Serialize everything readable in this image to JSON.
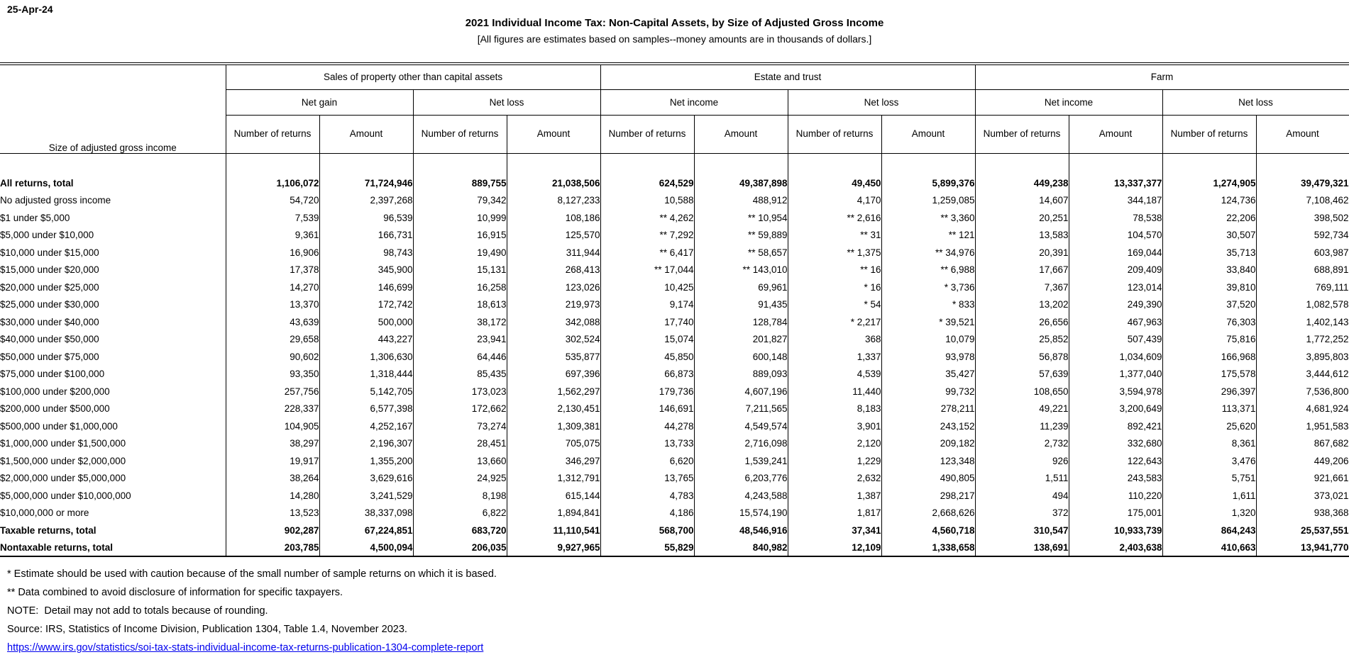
{
  "page": {
    "date": "25-Apr-24",
    "title": "2021 Individual Income Tax: Non-Capital Assets, by Size of Adjusted Gross Income",
    "subtitle": "[All figures are estimates based on samples--money amounts are in thousands of dollars.]",
    "link_color": "#0000EE"
  },
  "table": {
    "stub_header": "Size of adjusted gross income",
    "groups": [
      {
        "label": "Sales of property other than capital assets",
        "subgroups": [
          "Net gain",
          "Net loss"
        ]
      },
      {
        "label": "Estate and trust",
        "subgroups": [
          "Net income",
          "Net loss"
        ]
      },
      {
        "label": "Farm",
        "subgroups": [
          "Net income",
          "Net loss"
        ]
      }
    ],
    "measure_headers": [
      "Number of returns",
      "Amount"
    ],
    "rows": [
      {
        "label": "All returns, total",
        "bold": true,
        "values": [
          "1,106,072",
          "71,724,946",
          "889,755",
          "21,038,506",
          "624,529",
          "49,387,898",
          "49,450",
          "5,899,376",
          "449,238",
          "13,337,377",
          "1,274,905",
          "39,479,321"
        ]
      },
      {
        "label": "No adjusted gross income",
        "bold": false,
        "values": [
          "54,720",
          "2,397,268",
          "79,342",
          "8,127,233",
          "10,588",
          "488,912",
          "4,170",
          "1,259,085",
          "14,607",
          "344,187",
          "124,736",
          "7,108,462"
        ]
      },
      {
        "label": "$1 under $5,000",
        "bold": false,
        "values": [
          "7,539",
          "96,539",
          "10,999",
          "108,186",
          "** 4,262",
          "** 10,954",
          "** 2,616",
          "** 3,360",
          "20,251",
          "78,538",
          "22,206",
          "398,502"
        ]
      },
      {
        "label": "$5,000 under $10,000",
        "bold": false,
        "values": [
          "9,361",
          "166,731",
          "16,915",
          "125,570",
          "** 7,292",
          "** 59,889",
          "** 31",
          "** 121",
          "13,583",
          "104,570",
          "30,507",
          "592,734"
        ]
      },
      {
        "label": "$10,000 under $15,000",
        "bold": false,
        "values": [
          "16,906",
          "98,743",
          "19,490",
          "311,944",
          "** 6,417",
          "** 58,657",
          "** 1,375",
          "** 34,976",
          "20,391",
          "169,044",
          "35,713",
          "603,987"
        ]
      },
      {
        "label": "$15,000 under $20,000",
        "bold": false,
        "values": [
          "17,378",
          "345,900",
          "15,131",
          "268,413",
          "** 17,044",
          "** 143,010",
          "** 16",
          "** 6,988",
          "17,667",
          "209,409",
          "33,840",
          "688,891"
        ]
      },
      {
        "label": "$20,000 under $25,000",
        "bold": false,
        "values": [
          "14,270",
          "146,699",
          "16,258",
          "123,026",
          "10,425",
          "69,961",
          "* 16",
          "* 3,736",
          "7,367",
          "123,014",
          "39,810",
          "769,111"
        ]
      },
      {
        "label": "$25,000 under $30,000",
        "bold": false,
        "values": [
          "13,370",
          "172,742",
          "18,613",
          "219,973",
          "9,174",
          "91,435",
          "* 54",
          "* 833",
          "13,202",
          "249,390",
          "37,520",
          "1,082,578"
        ]
      },
      {
        "label": "$30,000 under $40,000",
        "bold": false,
        "values": [
          "43,639",
          "500,000",
          "38,172",
          "342,088",
          "17,740",
          "128,784",
          "* 2,217",
          "* 39,521",
          "26,656",
          "467,963",
          "76,303",
          "1,402,143"
        ]
      },
      {
        "label": "$40,000 under $50,000",
        "bold": false,
        "values": [
          "29,658",
          "443,227",
          "23,941",
          "302,524",
          "15,074",
          "201,827",
          "368",
          "10,079",
          "25,852",
          "507,439",
          "75,816",
          "1,772,252"
        ]
      },
      {
        "label": "$50,000 under $75,000",
        "bold": false,
        "values": [
          "90,602",
          "1,306,630",
          "64,446",
          "535,877",
          "45,850",
          "600,148",
          "1,337",
          "93,978",
          "56,878",
          "1,034,609",
          "166,968",
          "3,895,803"
        ]
      },
      {
        "label": "$75,000 under $100,000",
        "bold": false,
        "values": [
          "93,350",
          "1,318,444",
          "85,435",
          "697,396",
          "66,873",
          "889,093",
          "4,539",
          "35,427",
          "57,639",
          "1,377,040",
          "175,578",
          "3,444,612"
        ]
      },
      {
        "label": "$100,000 under $200,000",
        "bold": false,
        "values": [
          "257,756",
          "5,142,705",
          "173,023",
          "1,562,297",
          "179,736",
          "4,607,196",
          "11,440",
          "99,732",
          "108,650",
          "3,594,978",
          "296,397",
          "7,536,800"
        ]
      },
      {
        "label": "$200,000 under $500,000",
        "bold": false,
        "values": [
          "228,337",
          "6,577,398",
          "172,662",
          "2,130,451",
          "146,691",
          "7,211,565",
          "8,183",
          "278,211",
          "49,221",
          "3,200,649",
          "113,371",
          "4,681,924"
        ]
      },
      {
        "label": "$500,000 under $1,000,000",
        "bold": false,
        "values": [
          "104,905",
          "4,252,167",
          "73,274",
          "1,309,381",
          "44,278",
          "4,549,574",
          "3,901",
          "243,152",
          "11,239",
          "892,421",
          "25,620",
          "1,951,583"
        ]
      },
      {
        "label": "$1,000,000 under $1,500,000",
        "bold": false,
        "values": [
          "38,297",
          "2,196,307",
          "28,451",
          "705,075",
          "13,733",
          "2,716,098",
          "2,120",
          "209,182",
          "2,732",
          "332,680",
          "8,361",
          "867,682"
        ]
      },
      {
        "label": "$1,500,000 under $2,000,000",
        "bold": false,
        "values": [
          "19,917",
          "1,355,200",
          "13,660",
          "346,297",
          "6,620",
          "1,539,241",
          "1,229",
          "123,348",
          "926",
          "122,643",
          "3,476",
          "449,206"
        ]
      },
      {
        "label": "$2,000,000 under $5,000,000",
        "bold": false,
        "values": [
          "38,264",
          "3,629,616",
          "24,925",
          "1,312,791",
          "13,765",
          "6,203,776",
          "2,632",
          "490,805",
          "1,511",
          "243,583",
          "5,751",
          "921,661"
        ]
      },
      {
        "label": "$5,000,000 under $10,000,000",
        "bold": false,
        "values": [
          "14,280",
          "3,241,529",
          "8,198",
          "615,144",
          "4,783",
          "4,243,588",
          "1,387",
          "298,217",
          "494",
          "110,220",
          "1,611",
          "373,021"
        ]
      },
      {
        "label": "$10,000,000 or more",
        "bold": false,
        "values": [
          "13,523",
          "38,337,098",
          "6,822",
          "1,894,841",
          "4,186",
          "15,574,190",
          "1,817",
          "2,668,626",
          "372",
          "175,001",
          "1,320",
          "938,368"
        ]
      },
      {
        "label": "Taxable returns, total",
        "bold": true,
        "values": [
          "902,287",
          "67,224,851",
          "683,720",
          "11,110,541",
          "568,700",
          "48,546,916",
          "37,341",
          "4,560,718",
          "310,547",
          "10,933,739",
          "864,243",
          "25,537,551"
        ]
      },
      {
        "label": "Nontaxable returns, total",
        "bold": true,
        "values": [
          "203,785",
          "4,500,094",
          "206,035",
          "9,927,965",
          "55,829",
          "840,982",
          "12,109",
          "1,338,658",
          "138,691",
          "2,403,638",
          "410,663",
          "13,941,770"
        ]
      }
    ]
  },
  "footnotes": [
    "* Estimate should be used with caution because of the small number of sample returns on which it is based.",
    "** Data combined to avoid disclosure of information for specific taxpayers.",
    "NOTE:  Detail may not add to totals because of rounding.",
    "Source: IRS, Statistics of Income Division, Publication 1304, Table 1.4, November 2023."
  ],
  "source_link": "https://www.irs.gov/statistics/soi-tax-stats-individual-income-tax-returns-publication-1304-complete-report"
}
